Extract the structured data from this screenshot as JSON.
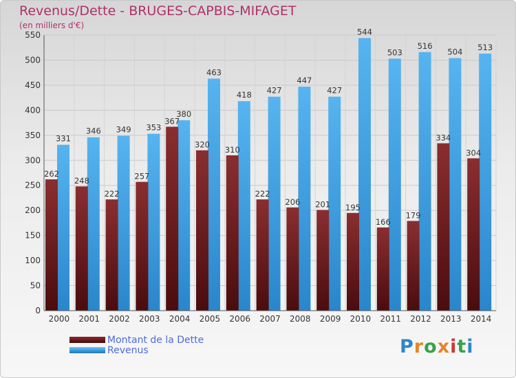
{
  "header": {
    "title": "Revenus/Dette - BRUGES-CAPBIS-MIFAGET",
    "subtitle": "(en milliers d'€)"
  },
  "colors": {
    "title": "#b0306a",
    "debt": "#6b1a1c",
    "revenue": "#3a9ee0",
    "legend_text": "#4f6bde"
  },
  "legend": {
    "items": [
      {
        "label": "Montant de la Dette",
        "color": "#6b1a1c"
      },
      {
        "label": "Revenus",
        "color": "#3a9ee0"
      }
    ]
  },
  "logo": {
    "text": "Proxiti",
    "letter_colors": [
      "#2f86c8",
      "#e3862a",
      "#3aa24a",
      "#e3862a",
      "#c83a3a",
      "#3aa24a",
      "#2f86c8"
    ]
  },
  "chart_data": {
    "type": "bar",
    "title": "Revenus/Dette - BRUGES-CAPBIS-MIFAGET",
    "subtitle": "(en milliers d'€)",
    "categories": [
      "2000",
      "2001",
      "2002",
      "2003",
      "2004",
      "2005",
      "2006",
      "2007",
      "2008",
      "2009",
      "2010",
      "2011",
      "2012",
      "2013",
      "2014"
    ],
    "series": [
      {
        "name": "Montant de la Dette",
        "values": [
          262,
          248,
          222,
          257,
          367,
          320,
          310,
          222,
          206,
          201,
          195,
          166,
          179,
          334,
          304
        ]
      },
      {
        "name": "Revenus",
        "values": [
          331,
          346,
          349,
          353,
          380,
          463,
          418,
          427,
          447,
          427,
          544,
          503,
          516,
          504,
          513
        ]
      }
    ],
    "y_ticks": [
      "0",
      "50",
      "100",
      "150",
      "200",
      "250",
      "300",
      "350",
      "400",
      "450",
      "500",
      "550"
    ],
    "ylim": [
      0,
      550
    ],
    "grid": true,
    "legend_position": "bottom-left"
  }
}
